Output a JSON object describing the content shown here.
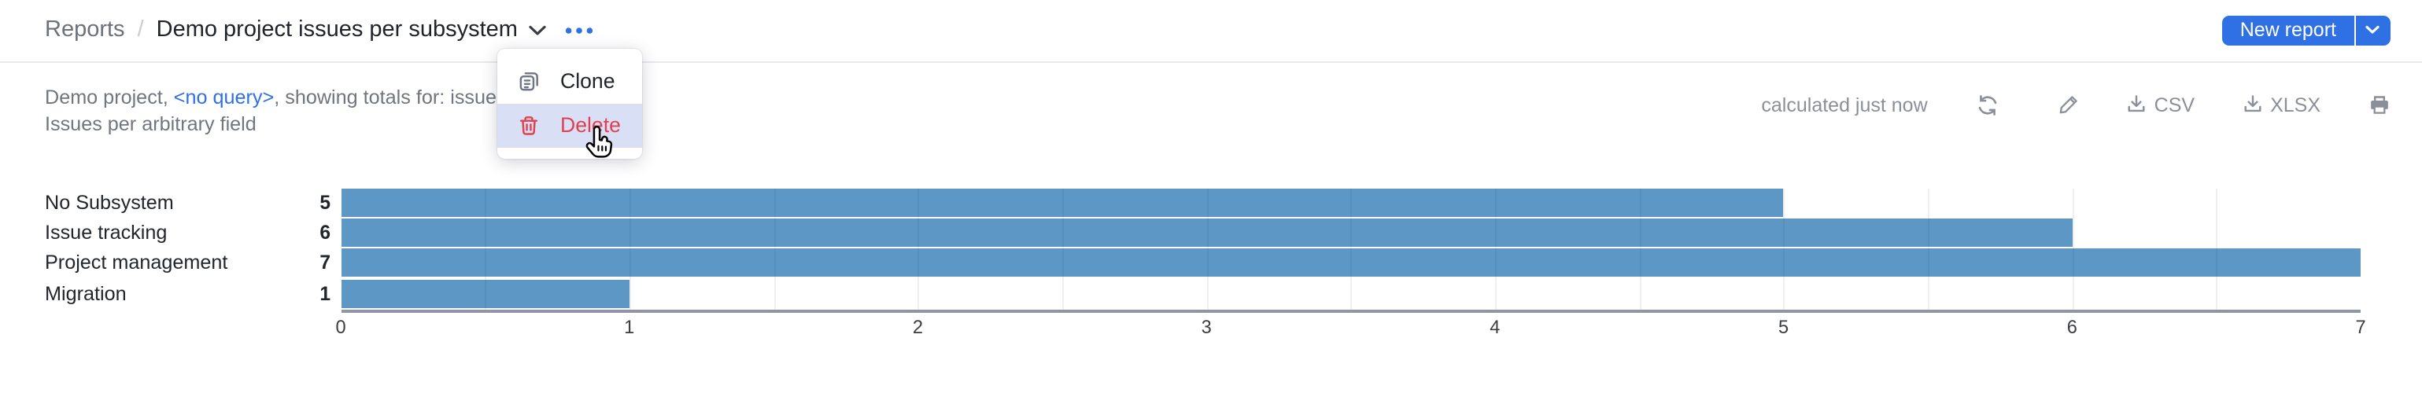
{
  "colors": {
    "accent": "#2f70e4",
    "bar": "#5c97c6",
    "danger": "#e1414e",
    "menu_hover_bg": "#d9dff5"
  },
  "breadcrumb": {
    "root": "Reports",
    "separator": "/",
    "title": "Demo project issues per subsystem",
    "chevron_icon": "chevron-down-icon",
    "more_icon": "ellipsis-icon"
  },
  "header": {
    "new_report_label": "New report"
  },
  "context_menu": {
    "items": [
      {
        "label": "Clone",
        "icon": "clone-icon",
        "danger": false,
        "hovered": false
      },
      {
        "label": "Delete",
        "icon": "trash-icon",
        "danger": true,
        "hovered": true
      }
    ]
  },
  "subtitle": {
    "prefix": "Demo project, ",
    "query_link": "<no query>",
    "suffix": ", showing totals for: issues cou",
    "line2": "Issues per arbitrary field"
  },
  "toolbar": {
    "status": "calculated just now",
    "refresh_icon": "refresh-icon",
    "edit_icon": "pencil-icon",
    "csv_label": "CSV",
    "xlsx_label": "XLSX",
    "download_icon": "download-icon",
    "print_icon": "printer-icon"
  },
  "chart_data": {
    "type": "bar",
    "orientation": "horizontal",
    "categories": [
      "No Subsystem",
      "Issue tracking",
      "Project management",
      "Migration"
    ],
    "values": [
      5,
      6,
      7,
      1
    ],
    "value_labels_shown": true,
    "xlim": [
      0,
      7
    ],
    "x_ticks": [
      0,
      1,
      2,
      3,
      4,
      5,
      6,
      7
    ],
    "grid_step": 0.5,
    "grid_on": true,
    "title": "",
    "xlabel": "",
    "ylabel": "",
    "legend": "none",
    "bar_color": "#5c97c6"
  }
}
